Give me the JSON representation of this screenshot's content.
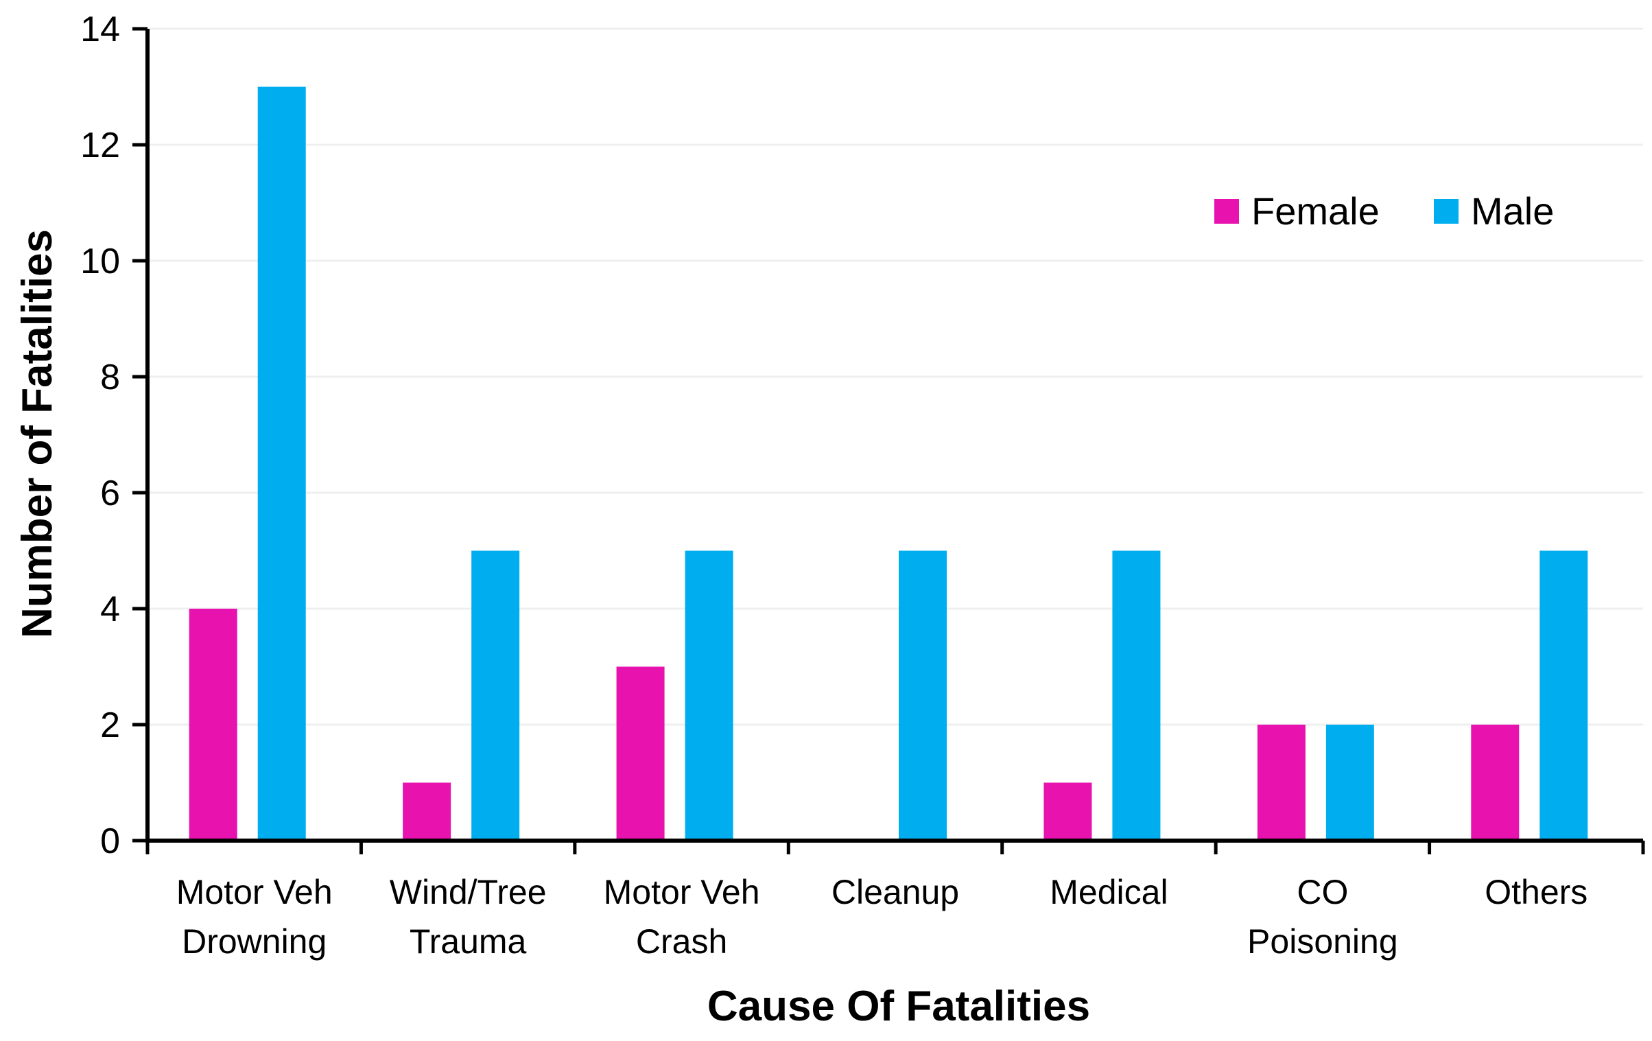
{
  "chart_data": {
    "type": "bar",
    "title": "",
    "xlabel": "Cause Of Fatalities",
    "ylabel": "Number of Fatalities",
    "ylim": [
      0,
      14
    ],
    "yticks": [
      0,
      2,
      4,
      6,
      8,
      10,
      12,
      14
    ],
    "grid": "horizontal, light",
    "legend_position": "top-right",
    "categories": [
      [
        "Motor Veh",
        "Drowning"
      ],
      [
        "Wind/Tree",
        "Trauma"
      ],
      [
        "Motor Veh",
        "Crash"
      ],
      [
        "Cleanup"
      ],
      [
        "Medical"
      ],
      [
        "CO",
        "Poisoning"
      ],
      [
        "Others"
      ]
    ],
    "series": [
      {
        "name": "Female",
        "color": "#E812AE",
        "values": [
          4,
          1,
          3,
          0,
          1,
          2,
          2
        ]
      },
      {
        "name": "Male",
        "color": "#00AEEF",
        "values": [
          13,
          5,
          5,
          5,
          5,
          2,
          5
        ]
      }
    ]
  }
}
